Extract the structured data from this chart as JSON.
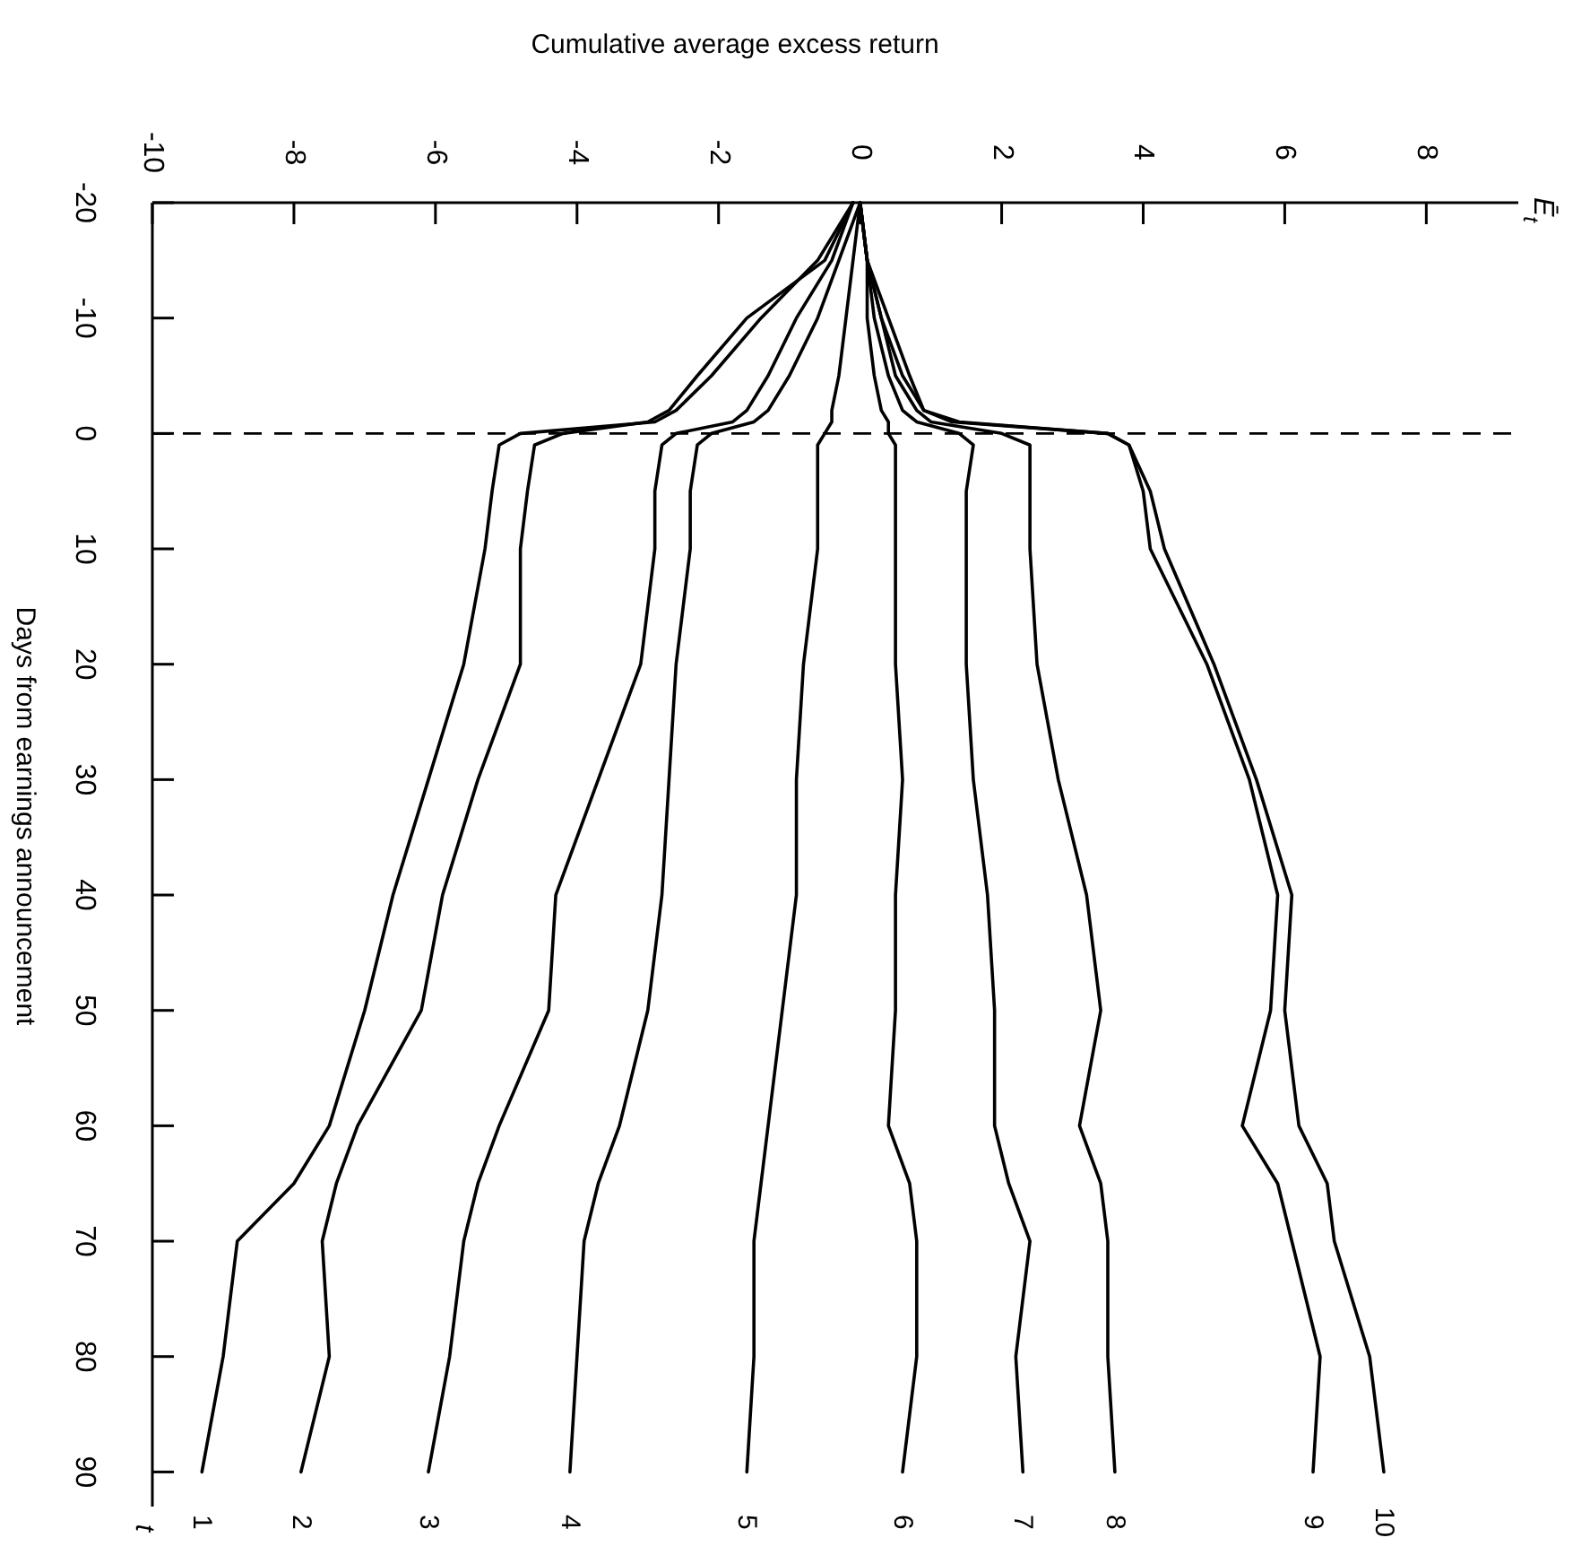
{
  "chart_data": {
    "type": "line",
    "xlabel": "Cumulative average excess return",
    "ylabel": "Days from earnings announcement",
    "xlim": [
      -10,
      9.3
    ],
    "xticks": [
      -10,
      -8,
      -6,
      -4,
      -2,
      0,
      2,
      4,
      6,
      8
    ],
    "ylim": [
      93,
      -20
    ],
    "yticks": [
      -20,
      -10,
      0,
      10,
      20,
      30,
      40,
      50,
      60,
      70,
      80,
      90
    ],
    "series": [
      {
        "name": "1",
        "color": "#000000",
        "x": [
          -0.1,
          -0.6,
          -1.4,
          -2.1,
          -2.6,
          -2.9,
          -4.8,
          -5.1,
          -5.2,
          -5.3,
          -5.6,
          -6.1,
          -6.6,
          -7.0,
          -7.5,
          -8.0,
          -8.8,
          -9.0,
          -9.3
        ],
        "values": [
          -20,
          -15,
          -10,
          -5,
          -2,
          -1,
          0,
          1,
          5,
          10,
          20,
          30,
          40,
          50,
          60,
          65,
          70,
          80,
          90
        ]
      },
      {
        "name": "2",
        "color": "#000000",
        "x": [
          -0.1,
          -0.5,
          -1.6,
          -2.3,
          -2.7,
          -3.0,
          -4.2,
          -4.6,
          -4.7,
          -4.8,
          -4.8,
          -5.4,
          -5.9,
          -6.2,
          -7.1,
          -7.4,
          -7.6,
          -7.5,
          -7.9
        ],
        "values": [
          -20,
          -15,
          -10,
          -5,
          -2,
          -1,
          0,
          1,
          5,
          10,
          20,
          30,
          40,
          50,
          60,
          65,
          70,
          80,
          90
        ]
      },
      {
        "name": "3",
        "color": "#000000",
        "x": [
          -0.1,
          -0.4,
          -0.9,
          -1.3,
          -1.6,
          -1.8,
          -2.6,
          -2.8,
          -2.9,
          -2.9,
          -3.1,
          -3.7,
          -4.3,
          -4.4,
          -5.1,
          -5.4,
          -5.6,
          -5.8,
          -6.1
        ],
        "values": [
          -20,
          -15,
          -10,
          -5,
          -2,
          -1,
          0,
          1,
          5,
          10,
          20,
          30,
          40,
          50,
          60,
          65,
          70,
          80,
          90
        ]
      },
      {
        "name": "4",
        "color": "#000000",
        "x": [
          0,
          -0.3,
          -0.6,
          -1.0,
          -1.3,
          -1.5,
          -2.1,
          -2.3,
          -2.4,
          -2.4,
          -2.6,
          -2.7,
          -2.8,
          -3.0,
          -3.4,
          -3.7,
          -3.9,
          -4.0,
          -4.1
        ],
        "values": [
          -20,
          -15,
          -10,
          -5,
          -2,
          -1,
          0,
          1,
          5,
          10,
          20,
          30,
          40,
          50,
          60,
          65,
          70,
          80,
          90
        ]
      },
      {
        "name": "5",
        "color": "#000000",
        "x": [
          0,
          -0.1,
          -0.2,
          -0.3,
          -0.4,
          -0.4,
          -0.5,
          -0.6,
          -0.6,
          -0.6,
          -0.8,
          -0.9,
          -0.9,
          -1.1,
          -1.3,
          -1.4,
          -1.5,
          -1.5,
          -1.6
        ],
        "values": [
          -20,
          -15,
          -10,
          -5,
          -2,
          -1,
          0,
          1,
          5,
          10,
          20,
          30,
          40,
          50,
          60,
          65,
          70,
          80,
          90
        ]
      },
      {
        "name": "6",
        "color": "#000000",
        "x": [
          0,
          0.1,
          0.1,
          0.2,
          0.3,
          0.4,
          0.4,
          0.5,
          0.5,
          0.5,
          0.5,
          0.6,
          0.5,
          0.5,
          0.4,
          0.7,
          0.8,
          0.8,
          0.6
        ],
        "values": [
          -20,
          -15,
          -10,
          -5,
          -2,
          -1,
          0,
          1,
          5,
          10,
          20,
          30,
          40,
          50,
          60,
          65,
          70,
          80,
          90
        ]
      },
      {
        "name": "7",
        "color": "#000000",
        "x": [
          0,
          0.1,
          0.2,
          0.4,
          0.6,
          0.8,
          1.4,
          1.6,
          1.5,
          1.5,
          1.5,
          1.6,
          1.8,
          1.9,
          1.9,
          2.1,
          2.4,
          2.2,
          2.3
        ],
        "values": [
          -20,
          -15,
          -10,
          -5,
          -2,
          -1,
          0,
          1,
          5,
          10,
          20,
          30,
          40,
          50,
          60,
          65,
          70,
          80,
          90
        ]
      },
      {
        "name": "8",
        "color": "#000000",
        "x": [
          0,
          0.1,
          0.3,
          0.5,
          0.8,
          1.0,
          2.0,
          2.4,
          2.4,
          2.4,
          2.5,
          2.8,
          3.2,
          3.4,
          3.1,
          3.4,
          3.5,
          3.5,
          3.6
        ],
        "values": [
          -20,
          -15,
          -10,
          -5,
          -2,
          -1,
          0,
          1,
          5,
          10,
          20,
          30,
          40,
          50,
          60,
          65,
          70,
          80,
          90
        ]
      },
      {
        "name": "9",
        "color": "#000000",
        "x": [
          0,
          0.1,
          0.3,
          0.6,
          0.9,
          1.3,
          3.5,
          3.8,
          4.0,
          4.1,
          4.9,
          5.5,
          5.9,
          5.8,
          5.4,
          5.9,
          6.1,
          6.5,
          6.4
        ],
        "values": [
          -20,
          -15,
          -10,
          -5,
          -2,
          -1,
          0,
          1,
          5,
          10,
          20,
          30,
          40,
          50,
          60,
          65,
          70,
          80,
          90
        ]
      },
      {
        "name": "10",
        "color": "#000000",
        "x": [
          0,
          0.1,
          0.4,
          0.7,
          0.9,
          1.4,
          3.5,
          3.8,
          4.1,
          4.3,
          5.0,
          5.6,
          6.1,
          6.0,
          6.2,
          6.6,
          6.7,
          7.2,
          7.4
        ],
        "values": [
          -20,
          -15,
          -10,
          -5,
          -2,
          -1,
          0,
          1,
          5,
          10,
          20,
          30,
          40,
          50,
          60,
          65,
          70,
          80,
          90
        ]
      }
    ],
    "ref_lines": [
      {
        "axis": "y",
        "value": 0,
        "color": "#000000",
        "line_style": "dashed"
      }
    ],
    "annotations": [
      "Ē$_{t}$",
      "t"
    ]
  }
}
